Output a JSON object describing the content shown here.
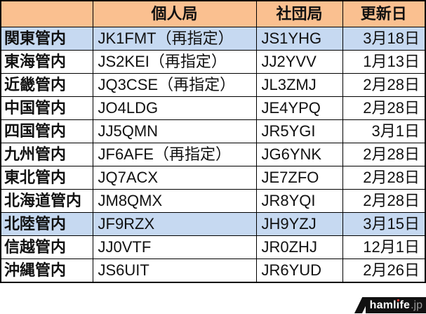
{
  "chart_data": {
    "type": "table",
    "title": "",
    "columns": [
      "",
      "個人局",
      "社団局",
      "更新日"
    ],
    "rows": [
      {
        "region": "関東管内",
        "individual": "JK1FMT（再指定）",
        "club": "JS1YHG",
        "date": "3月18日",
        "highlight": true
      },
      {
        "region": "東海管内",
        "individual": "JS2KEI（再指定）",
        "club": "JJ2YVV",
        "date": "1月13日",
        "highlight": false
      },
      {
        "region": "近畿管内",
        "individual": "JQ3CSE（再指定）",
        "club": "JL3ZMJ",
        "date": "2月28日",
        "highlight": false
      },
      {
        "region": "中国管内",
        "individual": "JO4LDG",
        "club": "JE4YPQ",
        "date": "2月28日",
        "highlight": false
      },
      {
        "region": "四国管内",
        "individual": "JJ5QMN",
        "club": "JR5YGI",
        "date": "3月1日",
        "highlight": false
      },
      {
        "region": "九州管内",
        "individual": "JF6AFE（再指定）",
        "club": "JG6YNK",
        "date": "2月28日",
        "highlight": false
      },
      {
        "region": "東北管内",
        "individual": "JQ7ACX",
        "club": "JE7ZFO",
        "date": "2月28日",
        "highlight": false
      },
      {
        "region": "北海道管内",
        "individual": "JM8QMX",
        "club": "JR8YQI",
        "date": "2月28日",
        "highlight": false
      },
      {
        "region": "北陸管内",
        "individual": "JF9RZX",
        "club": "JH9YZJ",
        "date": "3月15日",
        "highlight": true
      },
      {
        "region": "信越管内",
        "individual": "JJ0VTF",
        "club": "JR0ZHJ",
        "date": "12月1日",
        "highlight": false
      },
      {
        "region": "沖縄管内",
        "individual": "JS6UIT",
        "club": "JR6YUD",
        "date": "2月26日",
        "highlight": false
      }
    ],
    "highlighted_regions": [
      "関東管内",
      "北陸管内"
    ],
    "grid": true,
    "legend_position": "none"
  },
  "logo": {
    "brand_part1": "haml",
    "brand_i_char": "ı",
    "brand_part2": "fe",
    "suffix": ".jp"
  },
  "colors": {
    "header_bg": "#FAC090",
    "highlight_bg": "#C6D9F1",
    "row_bg": "#FFFFFF",
    "border": "#000000",
    "text": "#111111",
    "logo_bg": "#111111",
    "logo_text": "#FFFFFF",
    "logo_suffix": "#9A9A9A",
    "logo_accent": "#E8382F"
  }
}
